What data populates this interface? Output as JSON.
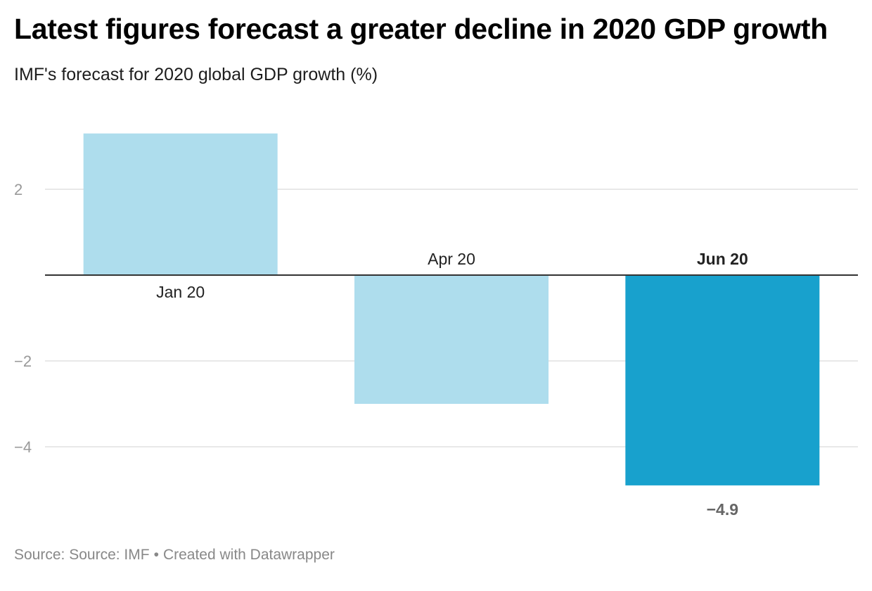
{
  "header": {
    "title": "Latest figures forecast a greater decline in 2020 GDP growth",
    "subtitle": "IMF's forecast for 2020 global GDP growth (%)"
  },
  "footer": {
    "source": "Source: Source: IMF",
    "separator": "•",
    "credit": "Created with Datawrapper"
  },
  "chart_data": {
    "type": "bar",
    "title": "Latest figures forecast a greater decline in 2020 GDP growth",
    "subtitle": "IMF's forecast for 2020 global GDP growth (%)",
    "categories": [
      "Jan 20",
      "Apr 20",
      "Jun 20"
    ],
    "values": [
      3.3,
      -3.0,
      -4.9
    ],
    "highlighted_category": "Jun 20",
    "value_labels": [
      {
        "category": "Jun 20",
        "text": "−4.9"
      }
    ],
    "y_ticks": [
      2,
      -2,
      -4
    ],
    "y_tick_labels": [
      "2",
      "−2",
      "−4"
    ],
    "ylim": [
      -5.6,
      4.6
    ],
    "grid": true,
    "colors": {
      "bar": "#aedded",
      "bar_highlight": "#18a1cd",
      "grid": "#e0e0e0",
      "zero_line": "#333333",
      "tick_label": "#999999",
      "value_label": "#666666"
    }
  }
}
